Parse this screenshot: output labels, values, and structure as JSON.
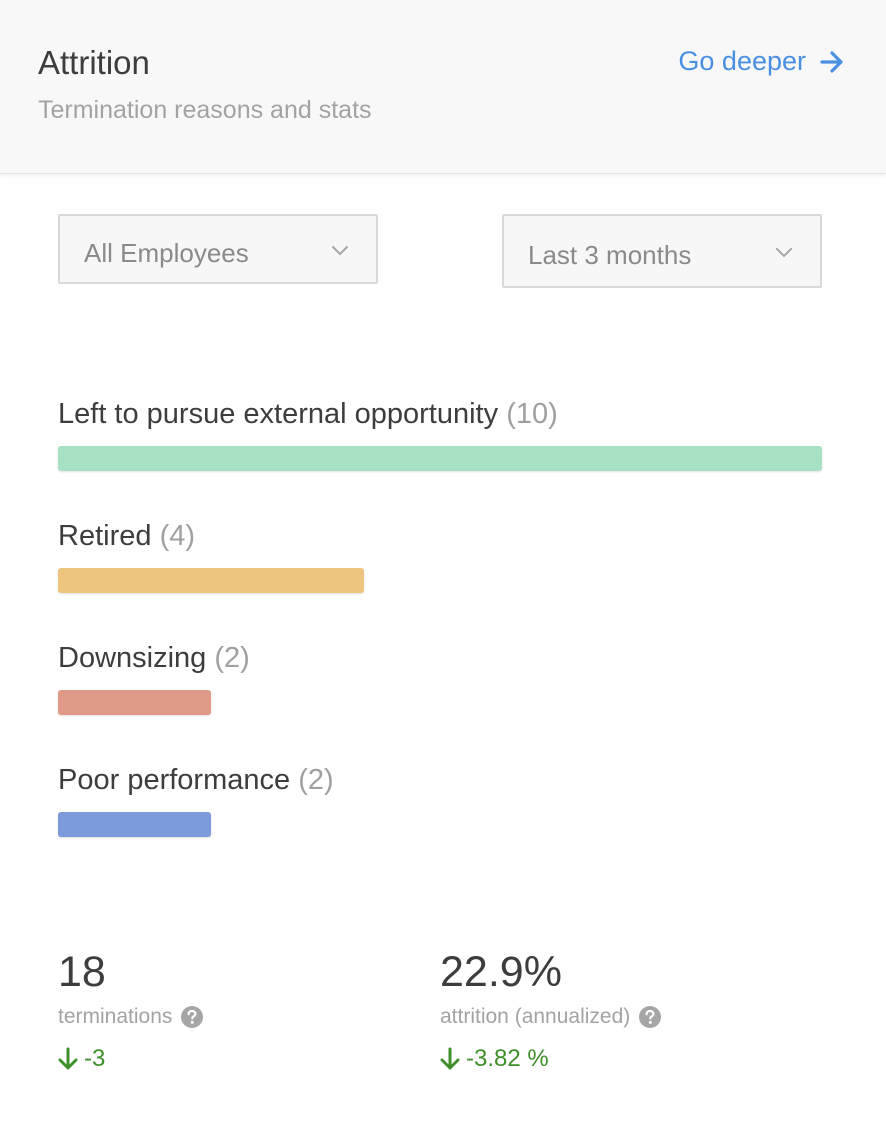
{
  "header": {
    "title": "Attrition",
    "subtitle": "Termination reasons and stats",
    "link_label": "Go deeper",
    "link_icon": "arrow-right-icon",
    "link_color": "#4a90e2"
  },
  "filters": {
    "employees": {
      "selected": "All Employees"
    },
    "period": {
      "selected": "Last 3 months"
    }
  },
  "reasons": [
    {
      "label": "Left to pursue external opportunity",
      "count_text": "(10)",
      "value": 10,
      "color": "#a8e0c4"
    },
    {
      "label": "Retired",
      "count_text": "(4)",
      "value": 4,
      "color": "#edc57f"
    },
    {
      "label": "Downsizing",
      "count_text": "(2)",
      "value": 2,
      "color": "#df9b87"
    },
    {
      "label": "Poor performance",
      "count_text": "(2)",
      "value": 2,
      "color": "#7d9ada"
    }
  ],
  "stats": {
    "terminations": {
      "value": "18",
      "label": "terminations",
      "change": "-3"
    },
    "attrition": {
      "value": "22.9%",
      "label": "attrition (annualized)",
      "change": "-3.82 %"
    },
    "positive_change_color": "#3f8f2a"
  }
}
